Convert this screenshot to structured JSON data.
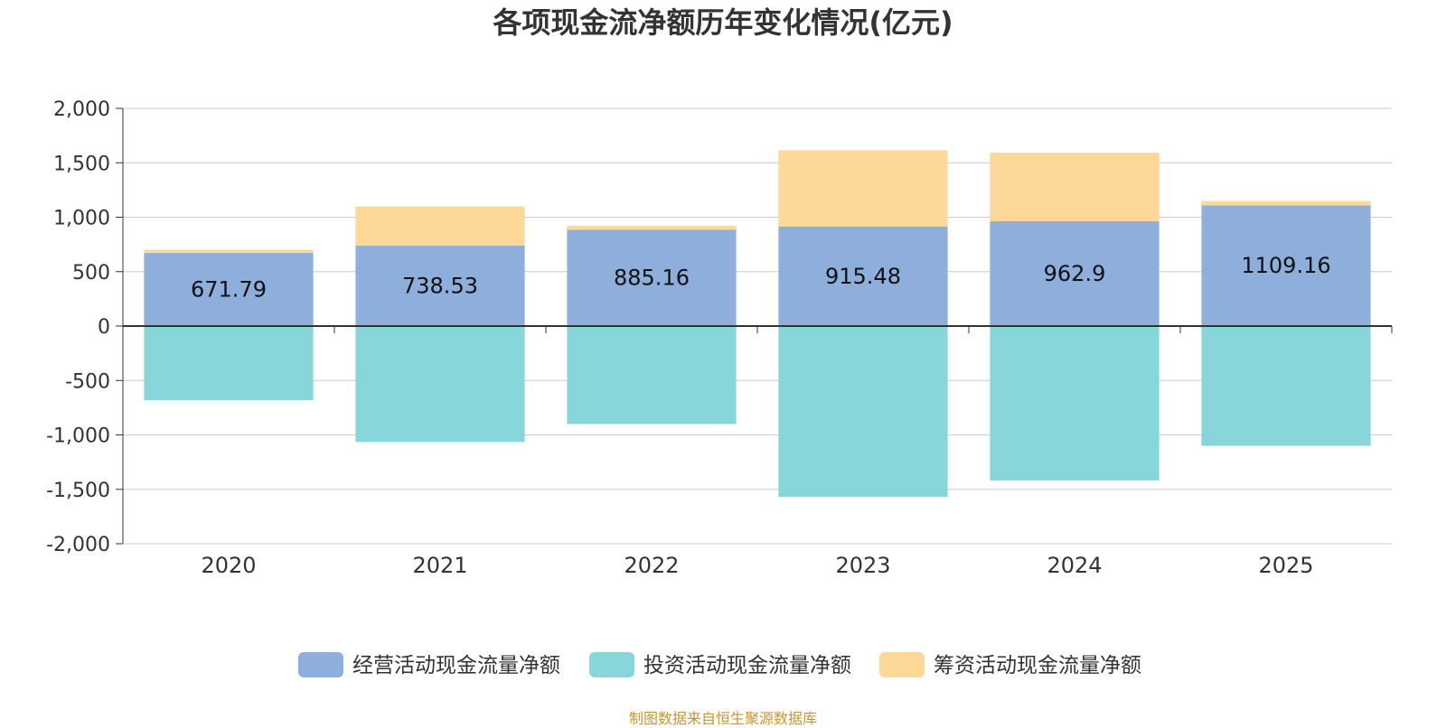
{
  "chart_data": {
    "type": "bar",
    "stacked": true,
    "title": "各项现金流净额历年变化情况(亿元)",
    "categories": [
      "2020",
      "2021",
      "2022",
      "2023",
      "2024",
      "2025"
    ],
    "series": [
      {
        "name": "经营活动现金流量净额",
        "color": "#8eaedb",
        "values": [
          671.79,
          738.53,
          885.16,
          915.48,
          962.9,
          1109.16
        ],
        "labels": [
          "671.79",
          "738.53",
          "885.16",
          "915.48",
          "962.9",
          "1109.16"
        ]
      },
      {
        "name": "投资活动现金流量净额",
        "color": "#87d6d9",
        "values": [
          -680,
          -1065,
          -900,
          -1570,
          -1420,
          -1100
        ]
      },
      {
        "name": "筹资活动现金流量净额",
        "color": "#fed898",
        "values": [
          30,
          360,
          35,
          700,
          630,
          40
        ]
      }
    ],
    "ylim": [
      -2000,
      2000
    ],
    "yticks": [
      2000,
      1500,
      1000,
      500,
      0,
      -500,
      -1000,
      -1500,
      -2000
    ],
    "ytick_labels": [
      "2,000",
      "1,500",
      "1,000",
      "500",
      "0",
      "-500",
      "-1,000",
      "-1,500",
      "-2,000"
    ],
    "xlabel": "",
    "ylabel": "",
    "grid": true,
    "legend_position": "bottom-center"
  },
  "source_note": "制图数据来自恒生聚源数据库"
}
